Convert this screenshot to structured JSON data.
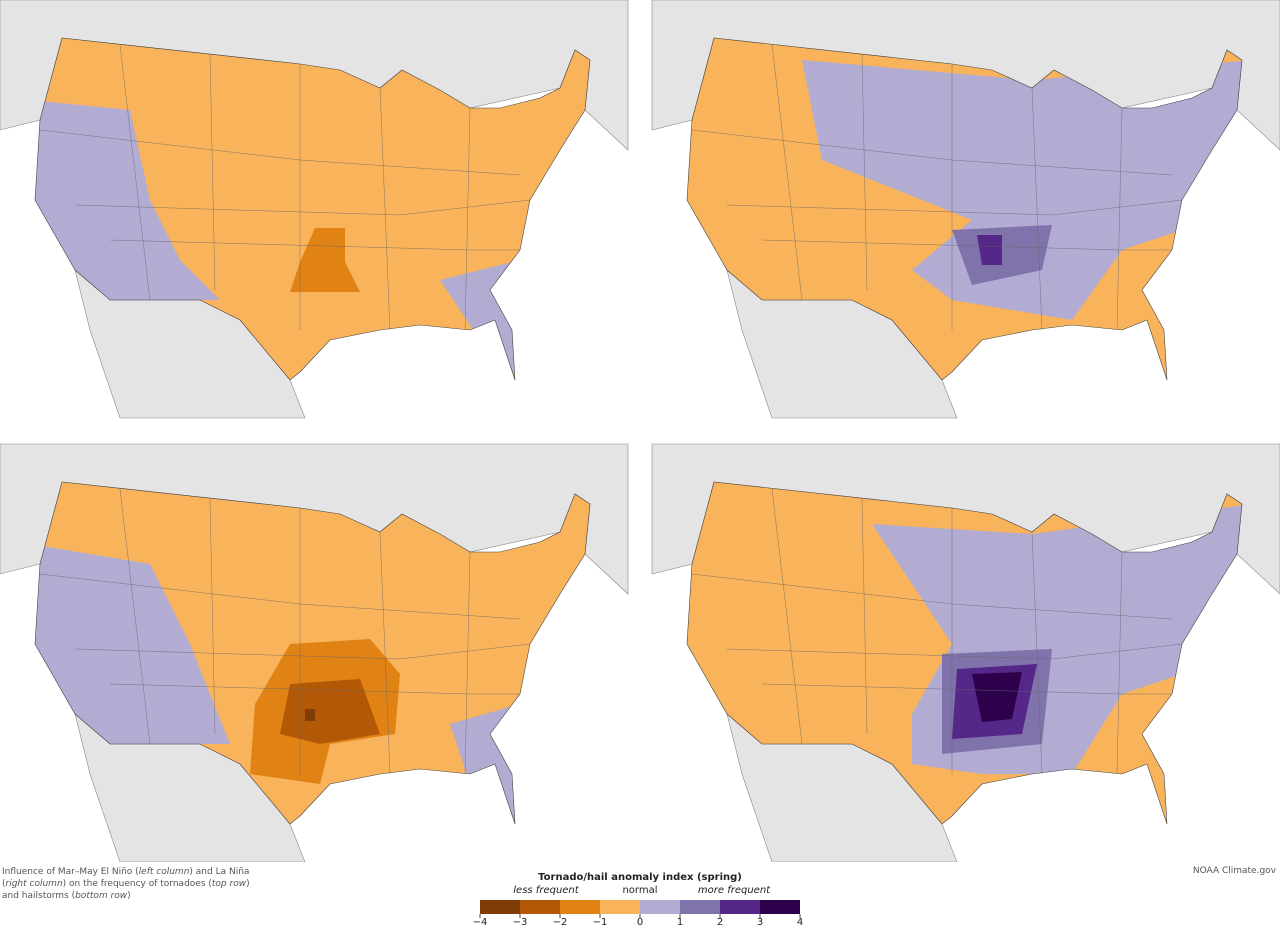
{
  "caption": [
    {
      "text": "Influence of Mar–May El Niño (",
      "italic": false
    },
    {
      "text": "left column",
      "italic": true
    },
    {
      "text": ") and La Niña (",
      "italic": false
    },
    {
      "text": "right column",
      "italic": true
    },
    {
      "text": ") on the frequency of tornadoes (",
      "italic": false
    },
    {
      "text": "top row",
      "italic": true
    },
    {
      "text": ") and hailstorms (",
      "italic": false
    },
    {
      "text": "bottom row",
      "italic": true
    },
    {
      "text": ")",
      "italic": false
    }
  ],
  "credit": "NOAA Climate.gov",
  "legend": {
    "title": "Tornado/hail anomaly index (spring)",
    "low_label": "less frequent",
    "mid_label": "normal",
    "high_label": "more frequent",
    "ticks": [
      {
        "value": -4,
        "label": "−4"
      },
      {
        "value": -3,
        "label": "−3"
      },
      {
        "value": -2,
        "label": "−2"
      },
      {
        "value": -1,
        "label": "−1"
      },
      0,
      1,
      2,
      3,
      4
    ],
    "colors": [
      "#7f3b08",
      "#b35806",
      "#e08214",
      "#f9b35a",
      "#b2abd2",
      "#8073ac",
      "#542788",
      "#2d004b"
    ]
  }
}
